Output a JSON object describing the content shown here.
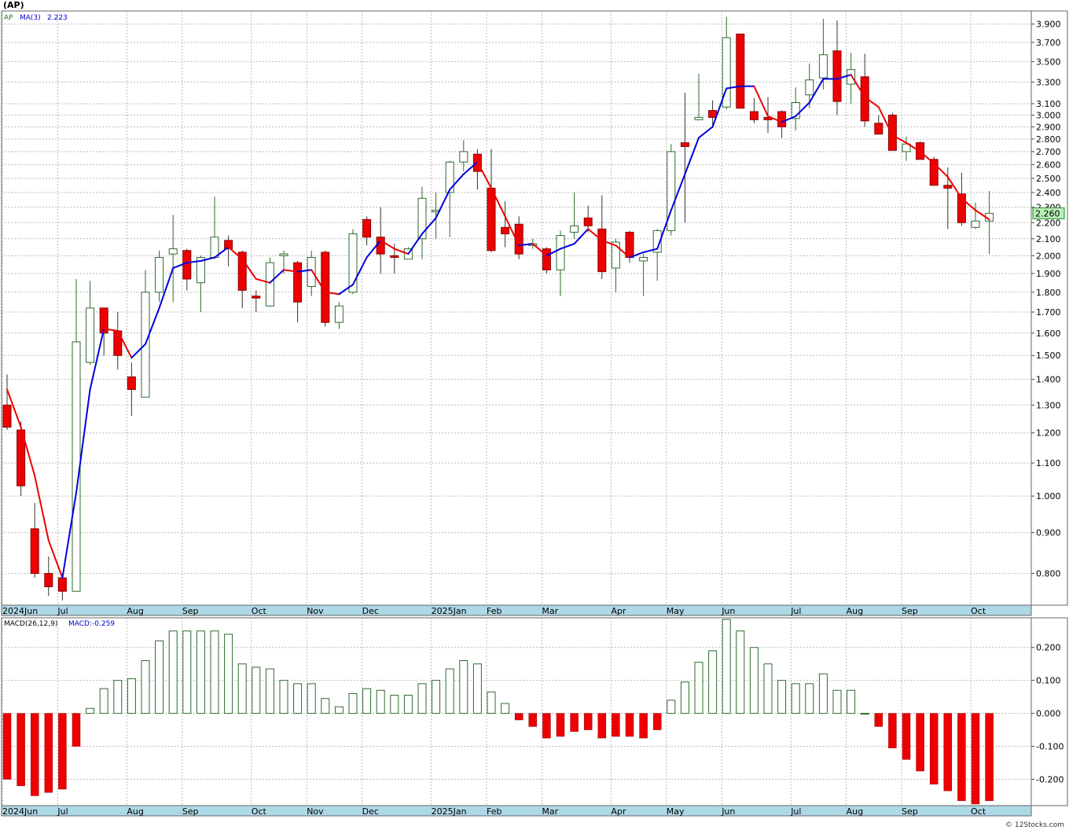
{
  "title": "(AP)",
  "credit": "© 12Stocks.com",
  "colors": {
    "up": "#2e6b2e",
    "down": "#ee0000",
    "ma_up": "#0000dd",
    "ma_down": "#ee0000",
    "grid": "#bbbbbb",
    "axis_bar": "#add8e6",
    "last_price_bg": "#b6f0b6"
  },
  "chart_data": [
    {
      "type": "candlestick",
      "legend": {
        "symbol": "AP",
        "ma_label": "MA(3)",
        "ma_value": "2.223"
      },
      "log_scale": true,
      "ylim": [
        0.73,
        4.05
      ],
      "y_ticks": [
        "0.800",
        "0.900",
        "1.000",
        "1.100",
        "1.200",
        "1.300",
        "1.400",
        "1.500",
        "1.600",
        "1.700",
        "1.800",
        "1.900",
        "2.000",
        "2.100",
        "2.200",
        "2.300",
        "2.400",
        "2.500",
        "2.600",
        "2.700",
        "2.800",
        "2.900",
        "3.000",
        "3.100",
        "3.300",
        "3.500",
        "3.700",
        "3.900"
      ],
      "last_price": "2.260",
      "x_labels": [
        "2024Jun",
        "Jul",
        "Aug",
        "Sep",
        "Oct",
        "Nov",
        "Dec",
        "2025Jan",
        "Feb",
        "Mar",
        "Apr",
        "May",
        "Jun",
        "Jul",
        "Aug",
        "Sep",
        "Oct"
      ],
      "x_label_weeks": [
        0,
        4,
        9,
        13,
        18,
        22,
        26,
        31,
        35,
        39,
        44,
        48,
        52,
        57,
        61,
        65,
        70
      ],
      "candles": [
        [
          1.3,
          1.42,
          1.21,
          1.22
        ],
        [
          1.21,
          1.24,
          1.0,
          1.03
        ],
        [
          0.91,
          0.98,
          0.79,
          0.8
        ],
        [
          0.8,
          0.84,
          0.75,
          0.77
        ],
        [
          0.79,
          0.8,
          0.74,
          0.76
        ],
        [
          0.76,
          1.87,
          0.76,
          1.56
        ],
        [
          1.47,
          1.86,
          1.46,
          1.72
        ],
        [
          1.72,
          1.7,
          1.5,
          1.6
        ],
        [
          1.61,
          1.7,
          1.44,
          1.5
        ],
        [
          1.41,
          1.47,
          1.26,
          1.36
        ],
        [
          1.33,
          1.92,
          1.33,
          1.8
        ],
        [
          1.8,
          2.03,
          1.75,
          1.99
        ],
        [
          2.01,
          2.25,
          1.75,
          2.04
        ],
        [
          2.03,
          2.04,
          1.81,
          1.87
        ],
        [
          1.85,
          2.0,
          1.7,
          1.99
        ],
        [
          1.99,
          2.37,
          1.98,
          2.11
        ],
        [
          2.09,
          2.12,
          1.94,
          2.04
        ],
        [
          2.02,
          2.03,
          1.72,
          1.81
        ],
        [
          1.78,
          1.81,
          1.7,
          1.77
        ],
        [
          1.73,
          1.99,
          1.73,
          1.96
        ],
        [
          2.0,
          2.03,
          1.9,
          2.01
        ],
        [
          1.96,
          1.97,
          1.65,
          1.75
        ],
        [
          1.83,
          2.03,
          1.78,
          1.99
        ],
        [
          2.02,
          2.03,
          1.63,
          1.65
        ],
        [
          1.65,
          1.75,
          1.62,
          1.73
        ],
        [
          1.8,
          2.16,
          1.79,
          2.13
        ],
        [
          2.22,
          2.24,
          2.06,
          2.11
        ],
        [
          2.11,
          2.3,
          1.9,
          2.01
        ],
        [
          2.0,
          2.07,
          1.9,
          1.99
        ],
        [
          1.98,
          2.05,
          1.99,
          2.04
        ],
        [
          2.1,
          2.44,
          1.98,
          2.36
        ],
        [
          2.27,
          2.4,
          2.1,
          2.28
        ],
        [
          2.4,
          2.63,
          2.11,
          2.62
        ],
        [
          2.62,
          2.79,
          2.55,
          2.7
        ],
        [
          2.68,
          2.72,
          2.42,
          2.55
        ],
        [
          2.43,
          2.72,
          2.02,
          2.03
        ],
        [
          2.17,
          2.34,
          2.05,
          2.13
        ],
        [
          2.19,
          2.24,
          1.98,
          2.01
        ],
        [
          2.06,
          2.1,
          2.04,
          2.07
        ],
        [
          2.04,
          2.05,
          1.9,
          1.92
        ],
        [
          1.92,
          2.15,
          1.78,
          2.12
        ],
        [
          2.14,
          2.4,
          2.1,
          2.18
        ],
        [
          2.23,
          2.31,
          2.14,
          2.18
        ],
        [
          2.16,
          2.38,
          1.87,
          1.91
        ],
        [
          1.93,
          2.1,
          1.8,
          2.08
        ],
        [
          2.14,
          2.15,
          1.96,
          1.99
        ],
        [
          1.97,
          2.01,
          1.78,
          1.99
        ],
        [
          2.02,
          2.16,
          1.86,
          2.15
        ],
        [
          2.15,
          2.76,
          2.12,
          2.7
        ],
        [
          2.77,
          3.2,
          2.2,
          2.74
        ],
        [
          2.96,
          3.38,
          2.96,
          2.98
        ],
        [
          3.04,
          3.13,
          2.89,
          2.98
        ],
        [
          3.07,
          3.98,
          3.05,
          3.75
        ],
        [
          3.79,
          3.76,
          3.06,
          3.06
        ],
        [
          3.03,
          3.15,
          2.93,
          2.96
        ],
        [
          2.98,
          3.16,
          2.85,
          2.96
        ],
        [
          3.03,
          3.04,
          2.81,
          2.9
        ],
        [
          2.97,
          3.25,
          2.87,
          3.11
        ],
        [
          3.18,
          3.48,
          3.06,
          3.32
        ],
        [
          3.34,
          3.96,
          3.23,
          3.57
        ],
        [
          3.61,
          3.94,
          3.0,
          3.12
        ],
        [
          3.28,
          3.59,
          3.1,
          3.42
        ],
        [
          3.35,
          3.58,
          2.9,
          2.95
        ],
        [
          2.93,
          3.0,
          2.85,
          2.84
        ],
        [
          3.0,
          3.02,
          2.71,
          2.71
        ],
        [
          2.7,
          2.82,
          2.63,
          2.76
        ],
        [
          2.77,
          2.78,
          2.64,
          2.64
        ],
        [
          2.64,
          2.66,
          2.45,
          2.45
        ],
        [
          2.45,
          2.58,
          2.16,
          2.43
        ],
        [
          2.39,
          2.54,
          2.18,
          2.2
        ],
        [
          2.17,
          2.33,
          2.16,
          2.21
        ],
        [
          2.21,
          2.41,
          2.01,
          2.26
        ]
      ],
      "ma3": [
        1.36,
        1.22,
        1.06,
        0.88,
        0.79,
        1.01,
        1.36,
        1.62,
        1.61,
        1.49,
        1.55,
        1.72,
        1.93,
        1.96,
        1.97,
        1.99,
        2.05,
        1.98,
        1.87,
        1.85,
        1.92,
        1.91,
        1.92,
        1.8,
        1.79,
        1.84,
        1.99,
        2.09,
        2.04,
        2.01,
        2.13,
        2.23,
        2.42,
        2.53,
        2.62,
        2.43,
        2.24,
        2.06,
        2.07,
        2.0,
        2.04,
        2.07,
        2.16,
        2.09,
        2.06,
        1.99,
        2.02,
        2.04,
        2.28,
        2.53,
        2.81,
        2.9,
        3.24,
        3.26,
        3.26,
        2.99,
        2.94,
        2.99,
        3.11,
        3.33,
        3.33,
        3.37,
        3.16,
        3.07,
        2.83,
        2.77,
        2.7,
        2.61,
        2.51,
        2.36,
        2.28,
        2.22
      ]
    },
    {
      "type": "bar",
      "legend": {
        "name": "MACD(26,12,9)",
        "value_label": "MACD:-0.259"
      },
      "ylim": [
        -0.28,
        0.29
      ],
      "y_ticks": [
        "0.200",
        "0.100",
        "0.000",
        "-0.100",
        "-0.200"
      ],
      "x_labels": [
        "2024Jun",
        "Jul",
        "Aug",
        "Sep",
        "Oct",
        "Nov",
        "Dec",
        "2025Jan",
        "Feb",
        "Mar",
        "Apr",
        "May",
        "Jun",
        "Jul",
        "Aug",
        "Sep",
        "Oct"
      ],
      "values": [
        -0.2,
        -0.22,
        -0.25,
        -0.24,
        -0.23,
        -0.1,
        0.015,
        0.075,
        0.1,
        0.105,
        0.16,
        0.22,
        0.25,
        0.25,
        0.25,
        0.25,
        0.24,
        0.15,
        0.14,
        0.135,
        0.1,
        0.09,
        0.09,
        0.045,
        0.02,
        0.06,
        0.075,
        0.07,
        0.055,
        0.055,
        0.09,
        0.1,
        0.135,
        0.16,
        0.15,
        0.065,
        0.03,
        -0.02,
        -0.04,
        -0.075,
        -0.07,
        -0.055,
        -0.05,
        -0.075,
        -0.07,
        -0.07,
        -0.075,
        -0.05,
        0.04,
        0.095,
        0.155,
        0.19,
        0.285,
        0.25,
        0.2,
        0.15,
        0.1,
        0.09,
        0.09,
        0.12,
        0.07,
        0.07,
        0.0,
        -0.04,
        -0.105,
        -0.14,
        -0.175,
        -0.215,
        -0.235,
        -0.265,
        -0.275,
        -0.265
      ]
    }
  ]
}
